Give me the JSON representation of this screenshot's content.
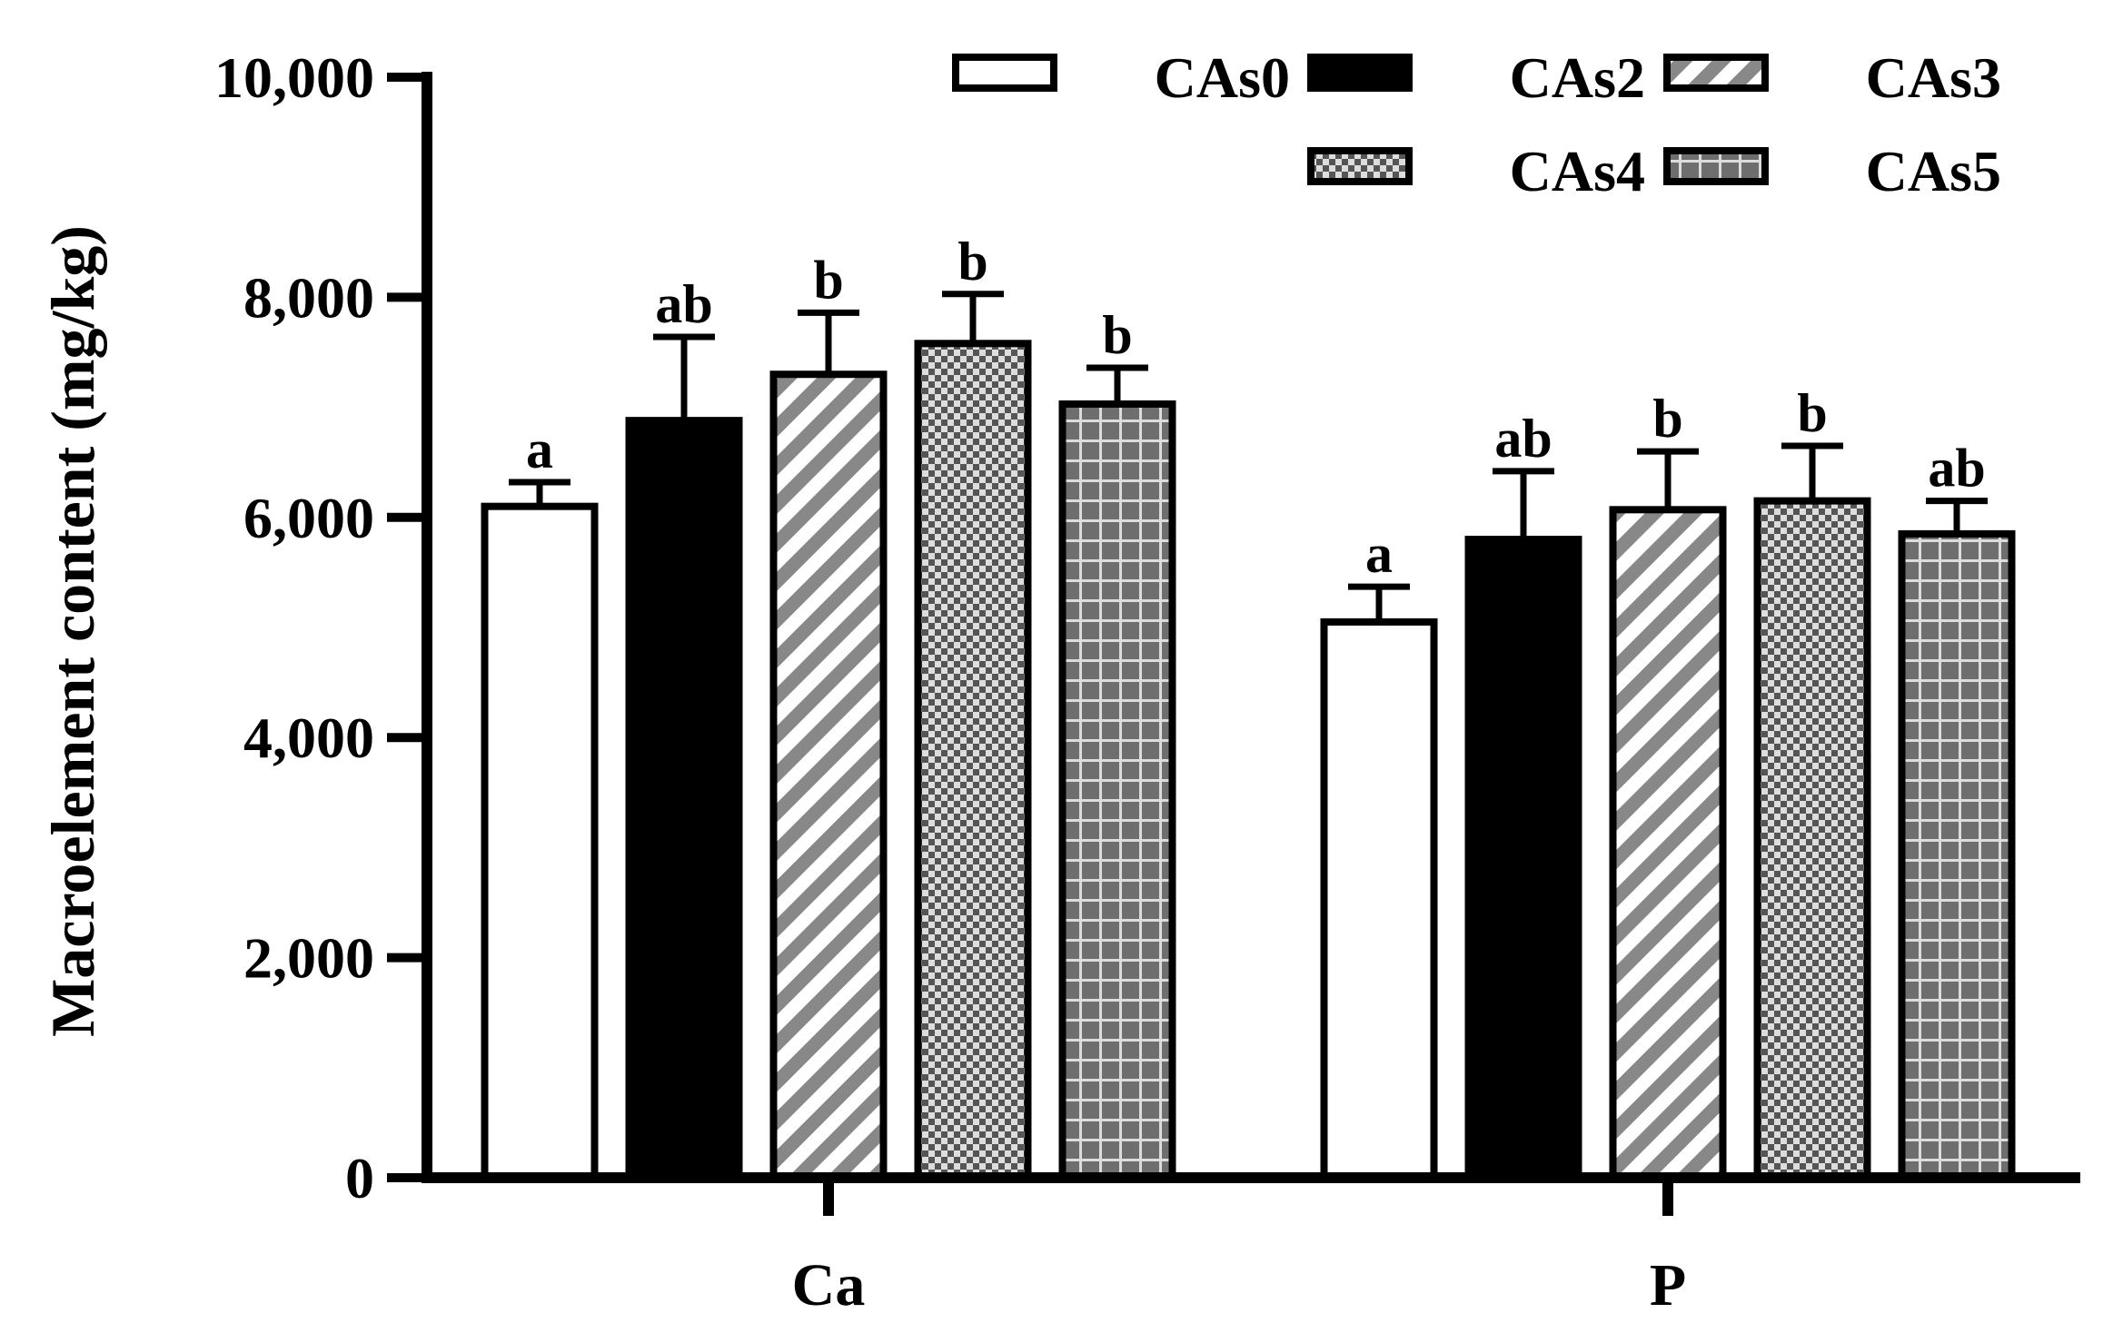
{
  "chart_data": {
    "type": "bar",
    "title": "",
    "xlabel": "",
    "ylabel": "Macroelement content (mg/kg)",
    "ylim": [
      0,
      10000
    ],
    "yticks": [
      0,
      2000,
      4000,
      6000,
      8000,
      10000
    ],
    "ytick_labels": [
      "0",
      "2,000",
      "4,000",
      "6,000",
      "8,000",
      "10,000"
    ],
    "categories": [
      "Ca",
      "P"
    ],
    "legend_position": "top-right",
    "series": [
      {
        "name": "CAs0",
        "pattern": "white",
        "values": [
          6100,
          5050
        ],
        "errors": [
          220,
          320
        ],
        "labels": [
          "a",
          "a"
        ]
      },
      {
        "name": "CAs2",
        "pattern": "solid-black",
        "values": [
          6880,
          5800
        ],
        "errors": [
          760,
          620
        ],
        "labels": [
          "ab",
          "ab"
        ]
      },
      {
        "name": "CAs3",
        "pattern": "diagonal-stripes",
        "values": [
          7300,
          6070
        ],
        "errors": [
          560,
          530
        ],
        "labels": [
          "b",
          "b"
        ]
      },
      {
        "name": "CAs4",
        "pattern": "checkerboard",
        "values": [
          7580,
          6150
        ],
        "errors": [
          450,
          500
        ],
        "labels": [
          "b",
          "b"
        ]
      },
      {
        "name": "CAs5",
        "pattern": "grid",
        "values": [
          7030,
          5850
        ],
        "errors": [
          330,
          300
        ],
        "labels": [
          "b",
          "ab"
        ]
      }
    ]
  },
  "colors": {
    "axis": "#000000",
    "stripe": "#888888",
    "checker_dark": "#555555",
    "checker_light": "#dddddd",
    "grid_fill": "#6e6e6e",
    "grid_line": "#dcdcdc"
  }
}
